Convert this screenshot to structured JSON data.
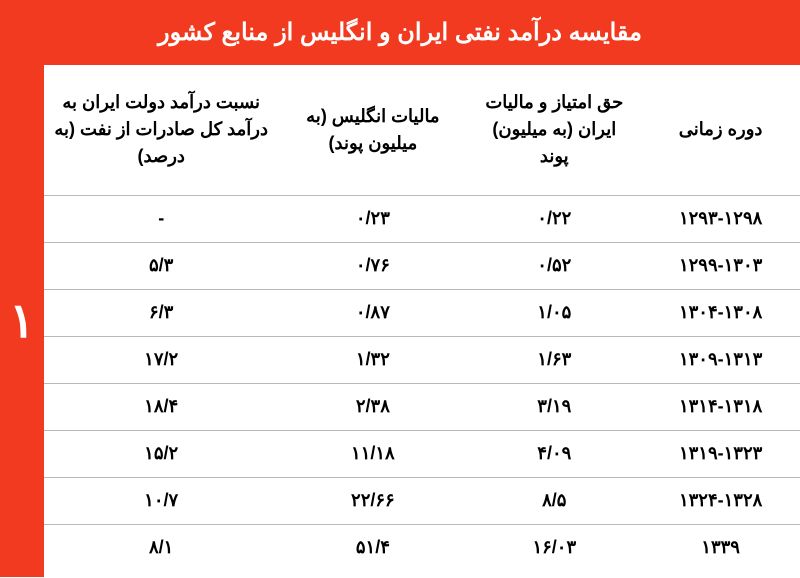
{
  "title": "مقایسه درآمد نفتی ایران و انگلیس از منابع کشور",
  "side_number": "۱",
  "colors": {
    "accent": "#f13a1f",
    "text": "#000000",
    "bg": "#ffffff",
    "border": "#b8b8b8",
    "title_text": "#ffffff"
  },
  "table": {
    "columns": [
      "دوره زمانی",
      "حق امتیاز و مالیات ایران (به میلیون) پوند",
      "مالیات انگلیس (به میلیون پوند)",
      "نسبت درآمد دولت ایران به درآمد کل صادرات از نفت (به درصد)"
    ],
    "rows": [
      [
        "۱۲۹۳-۱۲۹۸",
        "۰/۲۲",
        "۰/۲۳",
        "-"
      ],
      [
        "۱۲۹۹-۱۳۰۳",
        "۰/۵۲",
        "۰/۷۶",
        "۵/۳"
      ],
      [
        "۱۳۰۴-۱۳۰۸",
        "۱/۰۵",
        "۰/۸۷",
        "۶/۳"
      ],
      [
        "۱۳۰۹-۱۳۱۳",
        "۱/۶۳",
        "۱/۳۲",
        "۱۷/۲"
      ],
      [
        "۱۳۱۴-۱۳۱۸",
        "۳/۱۹",
        "۲/۳۸",
        "۱۸/۴"
      ],
      [
        "۱۳۱۹-۱۳۲۳",
        "۴/۰۹",
        "۱۱/۱۸",
        "۱۵/۲"
      ],
      [
        "۱۳۲۴-۱۳۲۸",
        "۸/۵",
        "۲۲/۶۶",
        "۱۰/۷"
      ],
      [
        "۱۳۳۹",
        "۱۶/۰۳",
        "۵۱/۴",
        "۸/۱"
      ]
    ]
  }
}
